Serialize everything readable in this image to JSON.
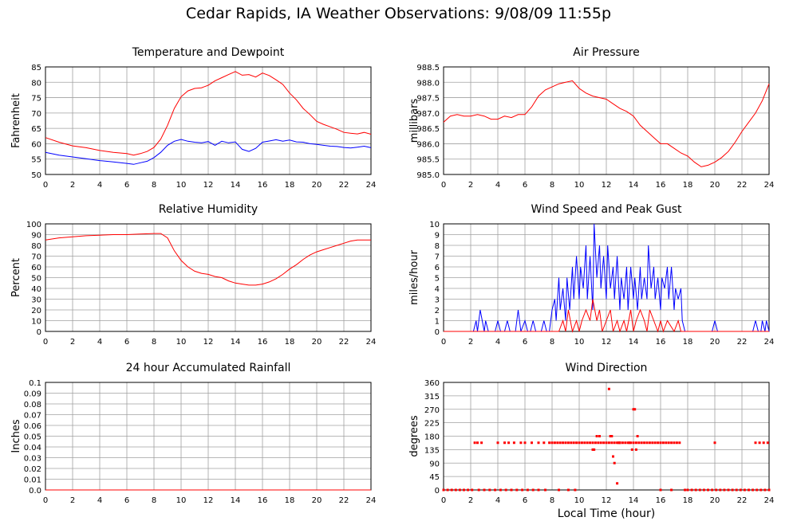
{
  "title": "Cedar Rapids, IA Weather Observations: 9/08/09 11:55p",
  "shared_xlabel": "Local Time (hour)",
  "colors": {
    "red": "#ff0000",
    "blue": "#0000ff",
    "grid": "#a0a0a0"
  },
  "chart_data": [
    {
      "id": "temp",
      "type": "line",
      "title": "Temperature and Dewpoint",
      "ylabel": "Fahrenheit",
      "xlim": [
        0,
        24
      ],
      "ylim": [
        50,
        85
      ],
      "xticks": [
        "0",
        "2",
        "4",
        "6",
        "8",
        "10",
        "12",
        "14",
        "16",
        "18",
        "20",
        "22",
        "24"
      ],
      "yticks": [
        "50",
        "55",
        "60",
        "65",
        "70",
        "75",
        "80",
        "85"
      ],
      "grid": true,
      "series": [
        {
          "color": "#ff0000",
          "x": [
            0,
            1,
            2,
            3,
            4,
            5,
            6,
            6.5,
            7,
            7.5,
            8,
            8.5,
            9,
            9.5,
            10,
            10.5,
            11,
            11.5,
            12,
            12.5,
            13,
            13.5,
            14,
            14.5,
            15,
            15.5,
            16,
            16.5,
            17,
            17.5,
            18,
            18.5,
            19,
            19.5,
            20,
            20.5,
            21,
            21.5,
            22,
            22.5,
            23,
            23.5,
            24
          ],
          "y": [
            62,
            60.5,
            59.3,
            58.7,
            57.8,
            57.2,
            56.8,
            56.3,
            56.8,
            57.5,
            58.8,
            61.5,
            66,
            71.5,
            75.3,
            77.2,
            78,
            78.2,
            79,
            80.5,
            81.5,
            82.5,
            83.5,
            82.3,
            82.5,
            81.7,
            83,
            82.2,
            80.8,
            79.3,
            76.5,
            74.3,
            71.5,
            69.5,
            67.3,
            66.3,
            65.5,
            64.7,
            63.7,
            63.4,
            63.2,
            63.7,
            63.1
          ]
        },
        {
          "color": "#0000ff",
          "x": [
            0,
            1,
            2,
            3,
            4,
            5,
            6,
            6.5,
            7,
            7.5,
            8,
            8.5,
            9,
            9.5,
            10,
            10.5,
            11,
            11.5,
            12,
            12.5,
            13,
            13.5,
            14,
            14.5,
            15,
            15.5,
            16,
            16.5,
            17,
            17.5,
            18,
            18.5,
            19,
            19.5,
            20,
            20.5,
            21,
            21.5,
            22,
            22.5,
            23,
            23.5,
            24
          ],
          "y": [
            57.2,
            56.3,
            55.7,
            55.1,
            54.5,
            54.1,
            53.6,
            53.3,
            53.8,
            54.3,
            55.5,
            57.2,
            59.5,
            60.8,
            61.4,
            60.8,
            60.5,
            60.3,
            60.7,
            59.5,
            60.8,
            60.3,
            60.6,
            58.2,
            57.5,
            58.5,
            60.5,
            60.9,
            61.3,
            60.8,
            61.2,
            60.6,
            60.5,
            60,
            59.8,
            59.5,
            59.2,
            59.1,
            58.8,
            58.6,
            58.9,
            59.2,
            58.7
          ]
        }
      ]
    },
    {
      "id": "pressure",
      "type": "line",
      "title": "Air Pressure",
      "ylabel": "millibars",
      "xlim": [
        0,
        24
      ],
      "ylim": [
        985.0,
        988.5
      ],
      "xticks": [
        "0",
        "2",
        "4",
        "6",
        "8",
        "10",
        "12",
        "14",
        "16",
        "18",
        "20",
        "22",
        "24"
      ],
      "yticks": [
        "985.0",
        "985.5",
        "986.0",
        "986.5",
        "987.0",
        "987.5",
        "988.0",
        "988.5"
      ],
      "grid": true,
      "series": [
        {
          "color": "#ff0000",
          "x": [
            0,
            0.5,
            1,
            1.5,
            2,
            2.5,
            3,
            3.5,
            4,
            4.5,
            5,
            5.5,
            6,
            6.5,
            7,
            7.5,
            8,
            8.5,
            9,
            9.5,
            10,
            10.5,
            11,
            11.5,
            12,
            12.5,
            13,
            13.5,
            14,
            14.5,
            15,
            15.5,
            16,
            16.5,
            17,
            17.5,
            18,
            18.5,
            19,
            19.5,
            20,
            20.5,
            21,
            21.5,
            22,
            22.5,
            23,
            23.5,
            24
          ],
          "y": [
            986.7,
            986.9,
            986.95,
            986.9,
            986.9,
            986.95,
            986.9,
            986.8,
            986.8,
            986.9,
            986.85,
            986.95,
            986.95,
            987.2,
            987.55,
            987.75,
            987.85,
            987.95,
            988.0,
            988.05,
            987.8,
            987.65,
            987.55,
            987.5,
            987.45,
            987.3,
            987.15,
            987.05,
            986.9,
            986.6,
            986.4,
            986.2,
            986.0,
            986.0,
            985.85,
            985.7,
            985.6,
            985.4,
            985.25,
            985.3,
            985.4,
            985.55,
            985.75,
            986.05,
            986.4,
            986.7,
            987.0,
            987.4,
            987.95
          ]
        }
      ]
    },
    {
      "id": "humidity",
      "type": "line",
      "title": "Relative Humidity",
      "ylabel": "Percent",
      "xlim": [
        0,
        24
      ],
      "ylim": [
        0,
        100
      ],
      "xticks": [
        "0",
        "2",
        "4",
        "6",
        "8",
        "10",
        "12",
        "14",
        "16",
        "18",
        "20",
        "22",
        "24"
      ],
      "yticks": [
        "0",
        "10",
        "20",
        "30",
        "40",
        "50",
        "60",
        "70",
        "80",
        "90",
        "100"
      ],
      "grid": true,
      "series": [
        {
          "color": "#ff0000",
          "x": [
            0,
            1,
            2,
            3,
            4,
            5,
            6,
            7,
            8,
            8.5,
            9,
            9.5,
            10,
            10.5,
            11,
            11.5,
            12,
            12.5,
            13,
            13.5,
            14,
            14.5,
            15,
            15.5,
            16,
            16.5,
            17,
            17.5,
            18,
            18.5,
            19,
            19.5,
            20,
            20.5,
            21,
            21.5,
            22,
            22.5,
            23,
            23.5,
            24
          ],
          "y": [
            85,
            87,
            88,
            89,
            89.5,
            90,
            90,
            90.5,
            91,
            91,
            87,
            75,
            66,
            60,
            56,
            54,
            53,
            51,
            50,
            47,
            45,
            44,
            43,
            43,
            44,
            46,
            49,
            53,
            58,
            62,
            67,
            71,
            74,
            76,
            78,
            80,
            82,
            84,
            85,
            85,
            85
          ]
        }
      ]
    },
    {
      "id": "wind",
      "type": "line",
      "title": "Wind Speed and Peak Gust",
      "ylabel": "miles/hour",
      "xlim": [
        0,
        24
      ],
      "ylim": [
        0,
        10
      ],
      "xticks": [
        "0",
        "2",
        "4",
        "6",
        "8",
        "10",
        "12",
        "14",
        "16",
        "18",
        "20",
        "22",
        "24"
      ],
      "yticks": [
        "0",
        "1",
        "2",
        "3",
        "4",
        "5",
        "6",
        "7",
        "8",
        "9",
        "10"
      ],
      "grid": true,
      "series": [
        {
          "color": "#0000ff",
          "x": [
            0,
            2.2,
            2.4,
            2.5,
            2.7,
            3.0,
            3.1,
            3.3,
            3.8,
            4.0,
            4.2,
            4.5,
            4.7,
            4.9,
            5.3,
            5.5,
            5.7,
            6.0,
            6.2,
            6.4,
            6.6,
            6.8,
            7.2,
            7.4,
            7.6,
            7.8,
            8.0,
            8.2,
            8.3,
            8.5,
            8.6,
            8.8,
            9.0,
            9.1,
            9.3,
            9.5,
            9.6,
            9.8,
            10.0,
            10.1,
            10.3,
            10.5,
            10.6,
            10.8,
            11.0,
            11.1,
            11.3,
            11.5,
            11.6,
            11.8,
            12.0,
            12.1,
            12.3,
            12.5,
            12.6,
            12.8,
            13.0,
            13.1,
            13.3,
            13.5,
            13.6,
            13.8,
            14.0,
            14.1,
            14.3,
            14.5,
            14.6,
            14.8,
            15.0,
            15.1,
            15.3,
            15.5,
            15.6,
            15.8,
            16.0,
            16.1,
            16.3,
            16.5,
            16.6,
            16.8,
            17.0,
            17.1,
            17.3,
            17.5,
            17.6,
            17.8,
            18.0,
            19.8,
            20.0,
            20.2,
            22.8,
            23.0,
            23.2,
            23.4,
            23.5,
            23.7,
            23.8,
            24.0
          ],
          "y": [
            0,
            0,
            1,
            0,
            2,
            0,
            1,
            0,
            0,
            1,
            0,
            0,
            1,
            0,
            0,
            2,
            0,
            1,
            0,
            0,
            1,
            0,
            0,
            1,
            0,
            0,
            2,
            3,
            1,
            5,
            2,
            4,
            1,
            5,
            2,
            6,
            3,
            7,
            3,
            6,
            4,
            8,
            3,
            7,
            2,
            10,
            5,
            8,
            4,
            7,
            3,
            8,
            4,
            6,
            3,
            7,
            2,
            5,
            3,
            6,
            2,
            6,
            3,
            5,
            2,
            6,
            3,
            5,
            3,
            8,
            4,
            6,
            3,
            5,
            2,
            5,
            4,
            6,
            3,
            6,
            2,
            4,
            3,
            4,
            1,
            0,
            0,
            0,
            1,
            0,
            0,
            1,
            0,
            0,
            1,
            0,
            1,
            0
          ]
        },
        {
          "color": "#ff0000",
          "x": [
            0,
            8.5,
            8.8,
            9.0,
            9.2,
            9.5,
            9.8,
            10.0,
            10.2,
            10.5,
            10.8,
            11.0,
            11.3,
            11.5,
            11.7,
            12.0,
            12.3,
            12.5,
            12.8,
            13.0,
            13.3,
            13.5,
            13.8,
            14.0,
            14.2,
            14.5,
            14.8,
            15.0,
            15.2,
            15.5,
            15.8,
            16.0,
            16.2,
            16.5,
            17.0,
            17.3,
            17.5,
            24.0
          ],
          "y": [
            0,
            0,
            1,
            0,
            2,
            0,
            1,
            0,
            1,
            2,
            1,
            3,
            1,
            2,
            0,
            1,
            2,
            0,
            1,
            0,
            1,
            0,
            2,
            0,
            1,
            2,
            1,
            0,
            2,
            1,
            0,
            1,
            0,
            1,
            0,
            1,
            0,
            0
          ]
        }
      ]
    },
    {
      "id": "rain",
      "type": "line",
      "title": "24 hour Accumulated Rainfall",
      "ylabel": "Inches",
      "xlim": [
        0,
        24
      ],
      "ylim": [
        0,
        0.1
      ],
      "xticks": [
        "0",
        "2",
        "4",
        "6",
        "8",
        "10",
        "12",
        "14",
        "16",
        "18",
        "20",
        "22",
        "24"
      ],
      "yticks": [
        "0.0",
        "0.01",
        "0.02",
        "0.03",
        "0.04",
        "0.05",
        "0.06",
        "0.07",
        "0.08",
        "0.09",
        "0.1"
      ],
      "grid": true,
      "series": [
        {
          "color": "#ff0000",
          "x": [
            0,
            24
          ],
          "y": [
            0,
            0
          ]
        }
      ]
    },
    {
      "id": "direction",
      "type": "scatter",
      "title": "Wind Direction",
      "ylabel": "degrees",
      "xlabel": "Local Time (hour)",
      "xlim": [
        0,
        24
      ],
      "ylim": [
        0,
        360
      ],
      "xticks": [
        "0",
        "2",
        "4",
        "6",
        "8",
        "10",
        "12",
        "14",
        "16",
        "18",
        "20",
        "22",
        "24"
      ],
      "yticks": [
        "0",
        "45",
        "90",
        "135",
        "180",
        "225",
        "270",
        "315",
        "360"
      ],
      "grid": true,
      "series": [
        {
          "color": "#ff0000",
          "x": [
            2.3,
            2.5,
            2.8,
            4.0,
            4.5,
            4.8,
            5.2,
            5.7,
            6.0,
            6.5,
            7.0,
            7.4,
            7.8,
            8.0,
            8.2,
            8.4,
            8.6,
            8.8,
            9.0,
            9.2,
            9.4,
            9.6,
            9.8,
            10.0,
            10.2,
            10.4,
            10.6,
            10.8,
            11.0,
            11.2,
            11.4,
            11.6,
            11.8,
            12.0,
            12.2,
            12.4,
            12.6,
            12.8,
            13.0,
            13.2,
            13.4,
            13.6,
            13.8,
            14.0,
            14.2,
            14.4,
            14.6,
            14.8,
            15.0,
            15.2,
            15.4,
            15.6,
            15.8,
            16.0,
            16.2,
            16.4,
            16.6,
            16.8,
            17.0,
            17.2,
            17.4,
            20.0,
            23.0,
            23.3,
            23.6,
            23.9,
            11.0,
            11.1,
            11.5,
            12.2,
            12.3,
            12.5,
            12.6,
            12.8,
            12.9,
            13.0,
            13.9,
            14.0,
            14.1,
            14.2,
            11.3,
            12.4,
            13.7,
            14.3,
            0.0,
            0.3,
            0.6,
            0.9,
            1.2,
            1.5,
            1.8,
            2.1,
            2.6,
            3.0,
            3.4,
            3.8,
            4.2,
            4.6,
            5.0,
            5.4,
            5.8,
            6.2,
            6.6,
            7.0,
            7.5,
            8.5,
            9.2,
            9.7,
            16.0,
            16.8,
            17.8,
            18.0,
            18.3,
            18.6,
            18.9,
            19.2,
            19.5,
            19.8,
            20.1,
            20.4,
            20.7,
            21.0,
            21.3,
            21.6,
            21.9,
            22.2,
            22.5,
            22.8,
            23.1,
            23.4,
            23.7,
            24.0
          ],
          "y": [
            158,
            158,
            158,
            158,
            158,
            158,
            158,
            158,
            158,
            158,
            158,
            158,
            158,
            158,
            158,
            158,
            158,
            158,
            158,
            158,
            158,
            158,
            158,
            158,
            158,
            158,
            158,
            158,
            158,
            158,
            158,
            158,
            158,
            158,
            158,
            158,
            158,
            158,
            158,
            158,
            158,
            158,
            158,
            158,
            158,
            158,
            158,
            158,
            158,
            158,
            158,
            158,
            158,
            158,
            158,
            158,
            158,
            158,
            158,
            158,
            158,
            158,
            158,
            158,
            158,
            158,
            135,
            135,
            180,
            338,
            180,
            112,
            90,
            22,
            158,
            158,
            135,
            270,
            270,
            135,
            180,
            180,
            158,
            180,
            0,
            0,
            0,
            0,
            0,
            0,
            0,
            0,
            0,
            0,
            0,
            0,
            0,
            0,
            0,
            0,
            0,
            0,
            0,
            0,
            0,
            0,
            0,
            0,
            0,
            0,
            0,
            0,
            0,
            0,
            0,
            0,
            0,
            0,
            0,
            0,
            0,
            0,
            0,
            0,
            0,
            0,
            0,
            0,
            0,
            0,
            0,
            0
          ]
        }
      ]
    }
  ]
}
